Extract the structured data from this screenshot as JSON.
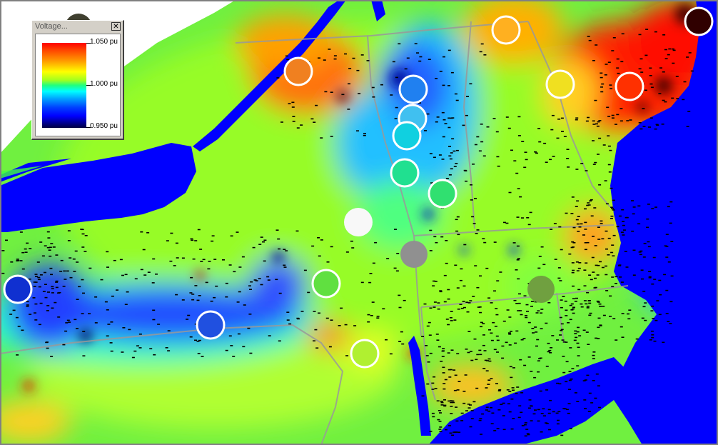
{
  "legend": {
    "title": "Voltage...",
    "close_glyph": "✕",
    "labels": [
      "1.050 pu",
      "1.000 pu",
      "0.950 pu"
    ],
    "gradient_colors": [
      "#ff0000",
      "#ff8000",
      "#ffff00",
      "#80ff40",
      "#00ffff",
      "#0080ff",
      "#0000ff",
      "#000040"
    ]
  },
  "map": {
    "colors": {
      "water": "#0000ff",
      "background_field": "#60ff40",
      "high_voltage": "#ff2000",
      "low_voltage": "#0040ff",
      "state_border": "#999999",
      "outside": "#ffffff"
    }
  }
}
